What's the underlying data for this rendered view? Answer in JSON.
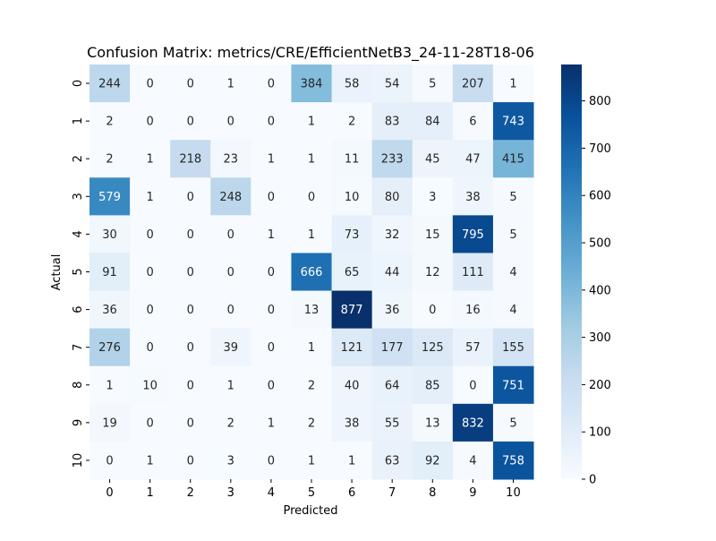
{
  "chart_data": {
    "type": "heatmap",
    "title": "Confusion Matrix: metrics/CRE/EfficientNetB3_24-11-28T18-06",
    "xlabel": "Predicted",
    "ylabel": "Actual",
    "x_categories": [
      "0",
      "1",
      "2",
      "3",
      "4",
      "5",
      "6",
      "7",
      "8",
      "9",
      "10"
    ],
    "y_categories": [
      "0",
      "1",
      "2",
      "3",
      "4",
      "5",
      "6",
      "7",
      "8",
      "9",
      "10"
    ],
    "values": [
      [
        244,
        0,
        0,
        1,
        0,
        384,
        58,
        54,
        5,
        207,
        1
      ],
      [
        2,
        0,
        0,
        0,
        0,
        1,
        2,
        83,
        84,
        6,
        743
      ],
      [
        2,
        1,
        218,
        23,
        1,
        1,
        11,
        233,
        45,
        47,
        415
      ],
      [
        579,
        1,
        0,
        248,
        0,
        0,
        10,
        80,
        3,
        38,
        5
      ],
      [
        30,
        0,
        0,
        0,
        1,
        1,
        73,
        32,
        15,
        795,
        5
      ],
      [
        91,
        0,
        0,
        0,
        0,
        666,
        65,
        44,
        12,
        111,
        4
      ],
      [
        36,
        0,
        0,
        0,
        0,
        13,
        877,
        36,
        0,
        16,
        4
      ],
      [
        276,
        0,
        0,
        39,
        0,
        1,
        121,
        177,
        125,
        57,
        155
      ],
      [
        1,
        10,
        0,
        1,
        0,
        2,
        40,
        64,
        85,
        0,
        751
      ],
      [
        19,
        0,
        0,
        2,
        1,
        2,
        38,
        55,
        13,
        832,
        5
      ],
      [
        0,
        1,
        0,
        3,
        0,
        1,
        1,
        63,
        92,
        4,
        758
      ]
    ],
    "colormap": "Blues",
    "colors": {
      "low": "#f7fbff",
      "high": "#08306b",
      "dark_text": "#262626",
      "light_text": "#ffffff"
    },
    "vmin": 0,
    "vmax": 877,
    "colorbar_ticks": [
      "0",
      "100",
      "200",
      "300",
      "400",
      "500",
      "600",
      "700",
      "800"
    ],
    "colorbar_tick_values": [
      0,
      100,
      200,
      300,
      400,
      500,
      600,
      700,
      800
    ],
    "grid": false,
    "legend": "colorbar-right"
  }
}
